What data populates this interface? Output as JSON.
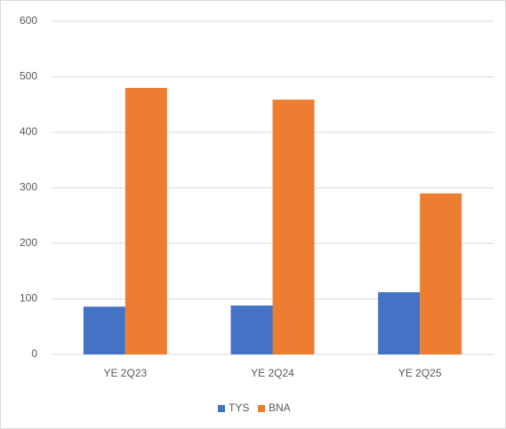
{
  "chart_data": {
    "type": "bar",
    "categories": [
      "YE 2Q23",
      "YE 2Q24",
      "YE 2Q25"
    ],
    "series": [
      {
        "name": "TYS",
        "color": "#4472c4",
        "values": [
          86,
          88,
          112
        ]
      },
      {
        "name": "BNA",
        "color": "#ed7d31",
        "values": [
          480,
          459,
          290
        ]
      }
    ],
    "ylim": [
      0,
      600
    ],
    "yticks": [
      0,
      100,
      200,
      300,
      400,
      500,
      600
    ],
    "grid": true,
    "legend": "bottom"
  }
}
